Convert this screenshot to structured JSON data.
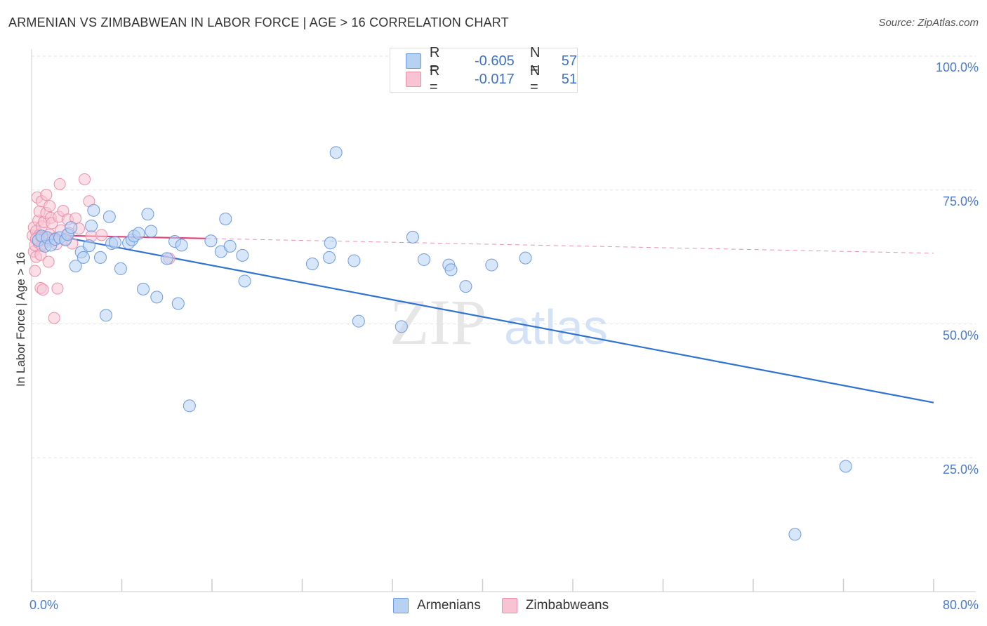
{
  "header": {
    "title": "ARMENIAN VS ZIMBABWEAN IN LABOR FORCE | AGE > 16 CORRELATION CHART",
    "source": "Source: ZipAtlas.com"
  },
  "legend": {
    "rows": [
      {
        "r_label": "R =",
        "r_value": "-0.605",
        "n_label": "N =",
        "n_value": "57"
      },
      {
        "r_label": "R =",
        "r_value": "-0.017",
        "n_label": "N =",
        "n_value": "51"
      }
    ]
  },
  "bottom_legend": {
    "armenians": "Armenians",
    "zimbabweans": "Zimbabweans"
  },
  "watermark": {
    "zip": "ZIP",
    "atlas": "atlas"
  },
  "colors": {
    "armenian_fill": "#b7d1f3",
    "armenian_stroke": "#6d9be0",
    "armenian_line": "#2f72d0",
    "zimbabwean_fill": "#f8c4d3",
    "zimbabwean_stroke": "#ec8fab",
    "zimbabwean_line": "#e0457a",
    "tick_text": "#4a7bd0"
  },
  "chart_data": {
    "type": "scatter",
    "title": "ARMENIAN VS ZIMBABWEAN IN LABOR FORCE | AGE > 16 CORRELATION CHART",
    "xlabel": "",
    "ylabel": "In Labor Force | Age > 16",
    "xlim": [
      0,
      80
    ],
    "ylim": [
      0,
      100
    ],
    "x_tick_labels": [
      "0.0%",
      "80.0%"
    ],
    "y_tick_labels": [
      "100.0%",
      "75.0%",
      "50.0%",
      "25.0%"
    ],
    "y_ticks": [
      100,
      75,
      50,
      25
    ],
    "grid": true,
    "legend_position": "top-center",
    "series": [
      {
        "name": "Armenians",
        "r": -0.605,
        "n": 57,
        "trend": [
          [
            0.3,
            67.2
          ],
          [
            80,
            35.3
          ]
        ],
        "points": [
          [
            0.6,
            65.6
          ],
          [
            0.9,
            66.4
          ],
          [
            1.2,
            64.5
          ],
          [
            1.4,
            66.1
          ],
          [
            1.7,
            64.7
          ],
          [
            2.1,
            65.8
          ],
          [
            2.5,
            66.1
          ],
          [
            3.0,
            65.7
          ],
          [
            3.2,
            66.7
          ],
          [
            3.5,
            68.0
          ],
          [
            3.9,
            60.8
          ],
          [
            4.4,
            63.4
          ],
          [
            4.6,
            62.4
          ],
          [
            5.1,
            64.6
          ],
          [
            5.3,
            68.3
          ],
          [
            5.5,
            71.2
          ],
          [
            6.1,
            62.4
          ],
          [
            6.6,
            51.6
          ],
          [
            6.9,
            70.0
          ],
          [
            7.1,
            65.0
          ],
          [
            7.4,
            65.2
          ],
          [
            7.9,
            60.3
          ],
          [
            8.6,
            65.1
          ],
          [
            8.9,
            65.7
          ],
          [
            9.1,
            66.4
          ],
          [
            9.5,
            66.9
          ],
          [
            9.9,
            56.5
          ],
          [
            10.3,
            70.5
          ],
          [
            10.6,
            67.3
          ],
          [
            11.1,
            55.0
          ],
          [
            12.0,
            62.2
          ],
          [
            12.7,
            65.4
          ],
          [
            13.0,
            53.8
          ],
          [
            13.3,
            64.7
          ],
          [
            14.0,
            34.7
          ],
          [
            15.9,
            65.5
          ],
          [
            16.8,
            63.5
          ],
          [
            17.2,
            69.6
          ],
          [
            17.6,
            64.5
          ],
          [
            18.7,
            62.8
          ],
          [
            18.9,
            58.0
          ],
          [
            24.9,
            61.2
          ],
          [
            26.4,
            62.4
          ],
          [
            26.5,
            65.1
          ],
          [
            27.0,
            82.0
          ],
          [
            28.6,
            61.8
          ],
          [
            29.0,
            50.5
          ],
          [
            32.8,
            49.5
          ],
          [
            33.8,
            66.2
          ],
          [
            34.8,
            62.0
          ],
          [
            37.0,
            61.0
          ],
          [
            37.2,
            60.1
          ],
          [
            38.5,
            57.0
          ],
          [
            40.8,
            61.0
          ],
          [
            43.8,
            62.3
          ],
          [
            72.2,
            23.4
          ],
          [
            67.7,
            10.7
          ]
        ]
      },
      {
        "name": "Zimbabweans",
        "r": -0.017,
        "n": 51,
        "trend": [
          [
            0.2,
            66.6
          ],
          [
            80,
            63.2
          ]
        ],
        "solid_until_x": 15.5,
        "points": [
          [
            0.1,
            66.5
          ],
          [
            0.2,
            68.0
          ],
          [
            0.2,
            63.5
          ],
          [
            0.3,
            64.7
          ],
          [
            0.3,
            59.9
          ],
          [
            0.4,
            62.5
          ],
          [
            0.4,
            67.3
          ],
          [
            0.5,
            66.0
          ],
          [
            0.5,
            73.6
          ],
          [
            0.6,
            69.3
          ],
          [
            0.6,
            65.2
          ],
          [
            0.7,
            71.0
          ],
          [
            0.7,
            66.6
          ],
          [
            0.8,
            62.9
          ],
          [
            0.8,
            56.7
          ],
          [
            0.9,
            72.9
          ],
          [
            0.9,
            68.2
          ],
          [
            1.0,
            56.4
          ],
          [
            1.1,
            65.0
          ],
          [
            1.1,
            69.0
          ],
          [
            1.2,
            66.3
          ],
          [
            1.3,
            74.1
          ],
          [
            1.3,
            70.7
          ],
          [
            1.4,
            65.6
          ],
          [
            1.5,
            61.6
          ],
          [
            1.6,
            72.0
          ],
          [
            1.6,
            66.7
          ],
          [
            1.7,
            69.8
          ],
          [
            1.8,
            68.8
          ],
          [
            1.9,
            65.5
          ],
          [
            2.0,
            51.1
          ],
          [
            2.1,
            66.0
          ],
          [
            2.2,
            64.9
          ],
          [
            2.3,
            56.6
          ],
          [
            2.4,
            70.0
          ],
          [
            2.5,
            76.1
          ],
          [
            2.6,
            67.5
          ],
          [
            2.8,
            71.1
          ],
          [
            3.0,
            65.8
          ],
          [
            3.2,
            69.5
          ],
          [
            3.3,
            67.0
          ],
          [
            3.6,
            65.0
          ],
          [
            3.9,
            69.7
          ],
          [
            4.2,
            67.8
          ],
          [
            4.7,
            77.0
          ],
          [
            5.1,
            72.9
          ],
          [
            5.3,
            66.4
          ],
          [
            6.2,
            66.6
          ],
          [
            12.2,
            62.2
          ],
          [
            0.4,
            65.9
          ],
          [
            0.9,
            64.6
          ]
        ]
      }
    ]
  }
}
